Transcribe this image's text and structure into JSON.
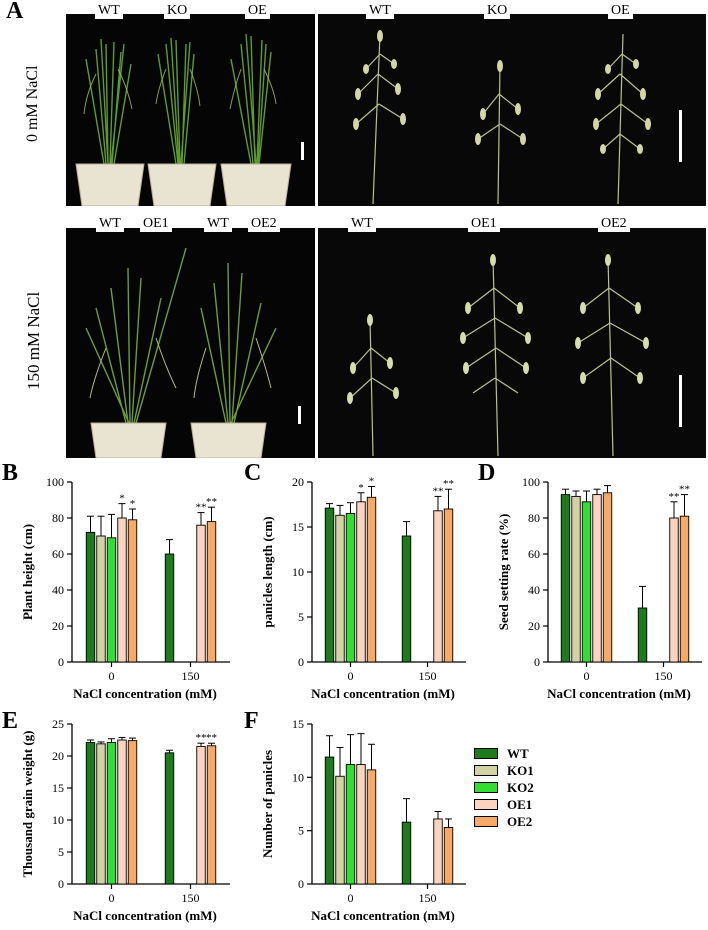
{
  "panel_letters": {
    "A": "A",
    "B": "B",
    "C": "C",
    "D": "D",
    "E": "E",
    "F": "F"
  },
  "photos": {
    "row1_label": "0 mM NaCl",
    "row2_label": "150 mM NaCl",
    "top_left_genotypes": [
      "WT",
      "KO",
      "OE"
    ],
    "top_right_genotypes": [
      "WT",
      "KO",
      "OE"
    ],
    "bottom_left_genotypes": [
      "WT",
      "OE1",
      "WT",
      "OE2"
    ],
    "bottom_right_genotypes": [
      "WT",
      "OE1",
      "OE2"
    ]
  },
  "legend": [
    {
      "label": "WT",
      "color": "#1d7a1d"
    },
    {
      "label": "KO1",
      "color": "#d2d2a4"
    },
    {
      "label": "KO2",
      "color": "#33dd33"
    },
    {
      "label": "OE1",
      "color": "#fbd4c0"
    },
    {
      "label": "OE2",
      "color": "#f7aa68"
    }
  ],
  "chart_data": [
    {
      "panel": "B",
      "type": "bar",
      "ylabel": "Plant height (cm)",
      "xlabel": "NaCl concentration (mM)",
      "ylim": [
        0,
        100
      ],
      "yticks": [
        0,
        20,
        40,
        60,
        80,
        100
      ],
      "categories": [
        "0",
        "150"
      ],
      "series": [
        {
          "name": "WT",
          "values": [
            72,
            60
          ],
          "errors": [
            9,
            8
          ],
          "sig": [
            "",
            ""
          ]
        },
        {
          "name": "KO1",
          "values": [
            70,
            null
          ],
          "errors": [
            11,
            null
          ],
          "sig": [
            "",
            ""
          ]
        },
        {
          "name": "KO2",
          "values": [
            69,
            null
          ],
          "errors": [
            13,
            null
          ],
          "sig": [
            "",
            ""
          ]
        },
        {
          "name": "OE1",
          "values": [
            80,
            76
          ],
          "errors": [
            8,
            7
          ],
          "sig": [
            "*",
            "**"
          ]
        },
        {
          "name": "OE2",
          "values": [
            79,
            78
          ],
          "errors": [
            6,
            8
          ],
          "sig": [
            "*",
            "**"
          ]
        }
      ]
    },
    {
      "panel": "C",
      "type": "bar",
      "ylabel": "panicles length (cm)",
      "xlabel": "NaCl concentration (mM)",
      "ylim": [
        0,
        20
      ],
      "yticks": [
        0,
        5,
        10,
        15,
        20
      ],
      "categories": [
        "0",
        "150"
      ],
      "series": [
        {
          "name": "WT",
          "values": [
            17.1,
            14
          ],
          "errors": [
            0.5,
            1.6
          ],
          "sig": [
            "",
            ""
          ]
        },
        {
          "name": "KO1",
          "values": [
            16.3,
            null
          ],
          "errors": [
            1.1,
            null
          ],
          "sig": [
            "",
            ""
          ]
        },
        {
          "name": "KO2",
          "values": [
            16.5,
            null
          ],
          "errors": [
            1.2,
            null
          ],
          "sig": [
            "",
            ""
          ]
        },
        {
          "name": "OE1",
          "values": [
            17.8,
            16.8
          ],
          "errors": [
            1.0,
            1.6
          ],
          "sig": [
            "*",
            "**"
          ]
        },
        {
          "name": "OE2",
          "values": [
            18.3,
            17
          ],
          "errors": [
            1.2,
            2.2
          ],
          "sig": [
            "*",
            "**"
          ]
        }
      ]
    },
    {
      "panel": "D",
      "type": "bar",
      "ylabel": "Seed setting rate (%)",
      "xlabel": "NaCl concentration (mM)",
      "ylim": [
        0,
        100
      ],
      "yticks": [
        0,
        20,
        40,
        60,
        80,
        100
      ],
      "categories": [
        "0",
        "150"
      ],
      "series": [
        {
          "name": "WT",
          "values": [
            93,
            30
          ],
          "errors": [
            3,
            12
          ],
          "sig": [
            "",
            ""
          ]
        },
        {
          "name": "KO1",
          "values": [
            92,
            null
          ],
          "errors": [
            3,
            null
          ],
          "sig": [
            "",
            ""
          ]
        },
        {
          "name": "KO2",
          "values": [
            89,
            null
          ],
          "errors": [
            6,
            null
          ],
          "sig": [
            "",
            ""
          ]
        },
        {
          "name": "OE1",
          "values": [
            93,
            80
          ],
          "errors": [
            3,
            9
          ],
          "sig": [
            "",
            "**"
          ]
        },
        {
          "name": "OE2",
          "values": [
            94,
            81
          ],
          "errors": [
            4,
            12
          ],
          "sig": [
            "",
            "**"
          ]
        }
      ]
    },
    {
      "panel": "E",
      "type": "bar",
      "ylabel": "Thousand grain weight (g)",
      "xlabel": "NaCl concentration (mM)",
      "ylim": [
        0,
        25
      ],
      "yticks": [
        0,
        5,
        10,
        15,
        20,
        25
      ],
      "categories": [
        "0",
        "150"
      ],
      "series": [
        {
          "name": "WT",
          "values": [
            22.1,
            20.5
          ],
          "errors": [
            0.4,
            0.4
          ],
          "sig": [
            "",
            ""
          ]
        },
        {
          "name": "KO1",
          "values": [
            21.9,
            null
          ],
          "errors": [
            0.3,
            null
          ],
          "sig": [
            "",
            ""
          ]
        },
        {
          "name": "KO2",
          "values": [
            22.1,
            null
          ],
          "errors": [
            0.6,
            null
          ],
          "sig": [
            "",
            ""
          ]
        },
        {
          "name": "OE1",
          "values": [
            22.5,
            21.5
          ],
          "errors": [
            0.4,
            0.5
          ],
          "sig": [
            "",
            "**"
          ]
        },
        {
          "name": "OE2",
          "values": [
            22.4,
            21.6
          ],
          "errors": [
            0.4,
            0.4
          ],
          "sig": [
            "",
            "**"
          ]
        }
      ]
    },
    {
      "panel": "F",
      "type": "bar",
      "ylabel": "Number of  panicles",
      "xlabel": "NaCl concentration (mM)",
      "ylim": [
        0,
        15
      ],
      "yticks": [
        0,
        5,
        10,
        15
      ],
      "categories": [
        "0",
        "150"
      ],
      "series": [
        {
          "name": "WT",
          "values": [
            11.9,
            5.8
          ],
          "errors": [
            2.0,
            2.2
          ],
          "sig": [
            "",
            ""
          ]
        },
        {
          "name": "KO1",
          "values": [
            10.1,
            null
          ],
          "errors": [
            2.7,
            null
          ],
          "sig": [
            "",
            ""
          ]
        },
        {
          "name": "KO2",
          "values": [
            11.2,
            null
          ],
          "errors": [
            2.8,
            null
          ],
          "sig": [
            "",
            ""
          ]
        },
        {
          "name": "OE1",
          "values": [
            11.2,
            6.1
          ],
          "errors": [
            2.9,
            0.7
          ],
          "sig": [
            "",
            ""
          ]
        },
        {
          "name": "OE2",
          "values": [
            10.7,
            5.3
          ],
          "errors": [
            2.4,
            0.8
          ],
          "sig": [
            "",
            ""
          ]
        }
      ]
    }
  ]
}
